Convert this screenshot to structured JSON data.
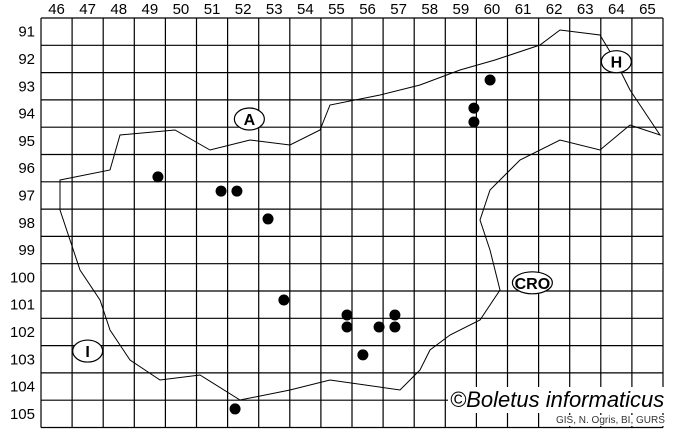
{
  "map": {
    "columns": [
      "46",
      "47",
      "48",
      "49",
      "50",
      "51",
      "52",
      "53",
      "54",
      "55",
      "56",
      "57",
      "58",
      "59",
      "60",
      "61",
      "62",
      "63",
      "64",
      "65"
    ],
    "rows": [
      "91",
      "92",
      "93",
      "94",
      "95",
      "96",
      "97",
      "98",
      "99",
      "100",
      "101",
      "102",
      "103",
      "104",
      "105"
    ],
    "region_labels": [
      {
        "id": "A",
        "text": "A",
        "grid": [
          52.7,
          94.7
        ]
      },
      {
        "id": "H",
        "text": "H",
        "grid": [
          64.5,
          92.6
        ]
      },
      {
        "id": "CRO",
        "text": "CRO",
        "grid": [
          61.8,
          100.7
        ]
      },
      {
        "id": "I",
        "text": "I",
        "grid": [
          47.5,
          103.2
        ]
      }
    ],
    "records": [
      [
        60.44,
        93.27
      ],
      [
        59.92,
        94.3
      ],
      [
        59.92,
        94.81
      ],
      [
        49.76,
        96.82
      ],
      [
        51.79,
        97.34
      ],
      [
        52.3,
        97.34
      ],
      [
        53.3,
        98.36
      ],
      [
        53.81,
        101.33
      ],
      [
        55.84,
        101.88
      ],
      [
        55.84,
        102.32
      ],
      [
        57.38,
        101.88
      ],
      [
        56.87,
        102.32
      ],
      [
        57.38,
        102.32
      ],
      [
        56.35,
        103.34
      ],
      [
        52.24,
        105.32
      ]
    ],
    "dot_color": "#000000"
  },
  "watermark": "©Boletus informaticus",
  "credit": "GIS, N. Ogris, BI, GURS"
}
